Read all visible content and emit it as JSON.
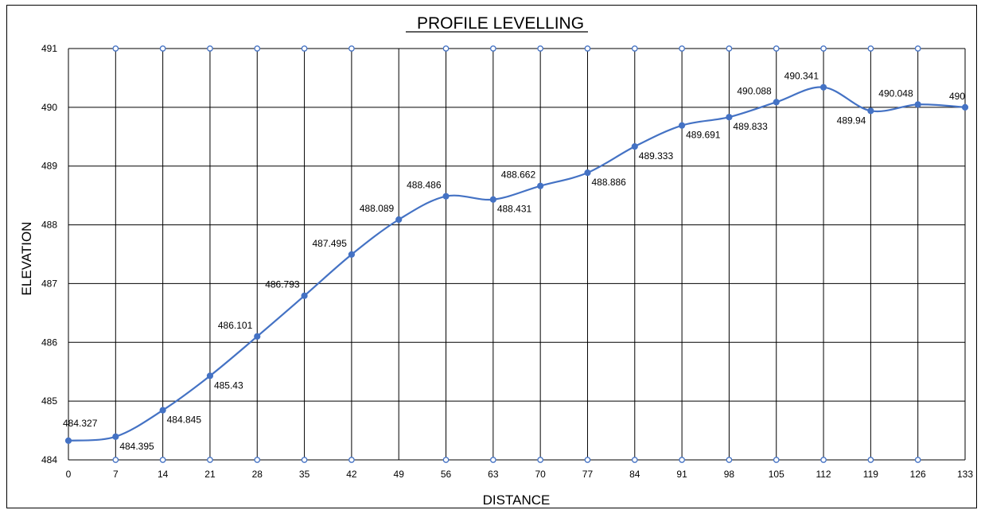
{
  "chart_data": {
    "type": "line",
    "title": "PROFILE LEVELLING",
    "xlabel": "DISTANCE",
    "ylabel": "ELEVATION",
    "x": [
      0,
      7,
      14,
      21,
      28,
      35,
      42,
      49,
      56,
      63,
      70,
      77,
      84,
      91,
      98,
      105,
      112,
      119,
      126,
      133
    ],
    "x_tick_labels": [
      "0",
      "7",
      "14",
      "21",
      "28",
      "35",
      "42",
      "49",
      "56",
      "63",
      "70",
      "77",
      "84",
      "91",
      "98",
      "105",
      "112",
      "119",
      "126",
      "133"
    ],
    "y_tick_labels": [
      "484",
      "485",
      "486",
      "487",
      "488",
      "489",
      "490",
      "491"
    ],
    "ylim": [
      484,
      491
    ],
    "grid": true,
    "smooth": true,
    "color": "#4472C4",
    "series": [
      {
        "values": [
          484.327,
          484.395,
          484.845,
          485.43,
          486.101,
          486.793,
          487.495,
          488.089,
          488.486,
          488.431,
          488.662,
          488.886,
          489.333,
          489.691,
          489.833,
          490.088,
          490.341,
          489.94,
          490.048,
          490
        ],
        "data_labels": [
          "484.327",
          "484.395",
          "484.845",
          "485.43",
          "486.101",
          "486.793",
          "487.495",
          "488.089",
          "488.486",
          "488.431",
          "488.662",
          "488.886",
          "489.333",
          "489.691",
          "489.833",
          "490.088",
          "490.341",
          "489.94",
          "490.048",
          "490"
        ]
      }
    ]
  }
}
